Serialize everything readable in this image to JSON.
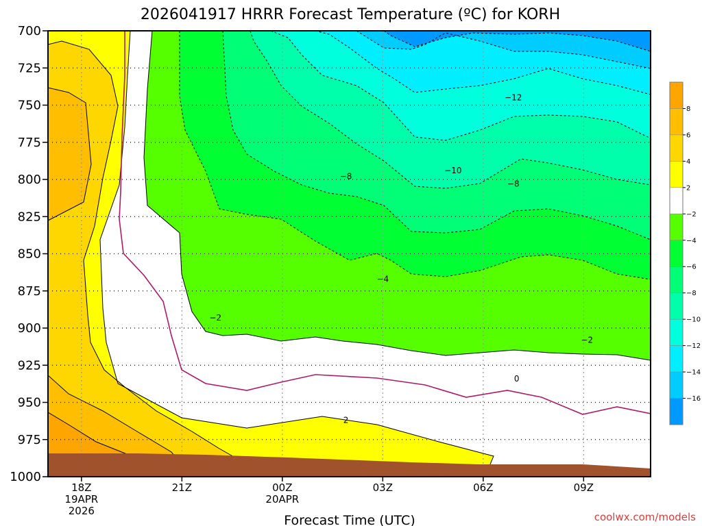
{
  "title": "2026041917 HRRR Forecast Temperature (ºC) for KORH",
  "credit": "coolwx.com/models",
  "chart_data": {
    "type": "heatmap",
    "title": "2026041917 HRRR Forecast Temperature (ºC) for KORH",
    "xlabel": "Forecast Time (UTC)",
    "ylabel": "",
    "y_ticks": [
      "700",
      "725",
      "750",
      "775",
      "800",
      "825",
      "850",
      "875",
      "900",
      "925",
      "950",
      "975",
      "1000"
    ],
    "y_range": [
      700,
      1000
    ],
    "y_reversed": true,
    "x_range_hours_utc": [
      17,
      35
    ],
    "x_ticks": [
      {
        "hour": 18,
        "label": "18Z",
        "line2": "19APR",
        "line3": "2026"
      },
      {
        "hour": 21,
        "label": "21Z",
        "line2": "",
        "line3": ""
      },
      {
        "hour": 24,
        "label": "00Z",
        "line2": "20APR",
        "line3": ""
      },
      {
        "hour": 27,
        "label": "03Z",
        "line2": "",
        "line3": ""
      },
      {
        "hour": 30,
        "label": "06Z",
        "line2": "",
        "line3": ""
      },
      {
        "hour": 33,
        "label": "09Z",
        "line2": "",
        "line3": ""
      }
    ],
    "grid": true,
    "ground_color": "#a0522d",
    "colorbar": {
      "placement": "right",
      "labels": [
        "8",
        "6",
        "4",
        "2",
        "-2",
        "-4",
        "-6",
        "-8",
        "-10",
        "-12",
        "-14",
        "-16"
      ],
      "bands": [
        {
          "from": 8,
          "to": 10,
          "color": "#ffa500"
        },
        {
          "from": 6,
          "to": 8,
          "color": "#ffbf00"
        },
        {
          "from": 4,
          "to": 6,
          "color": "#ffd700"
        },
        {
          "from": 2,
          "to": 4,
          "color": "#ffff00"
        },
        {
          "from": -2,
          "to": 2,
          "color": "#ffffff"
        },
        {
          "from": -4,
          "to": -2,
          "color": "#55ff00"
        },
        {
          "from": -6,
          "to": -4,
          "color": "#00ff33"
        },
        {
          "from": -8,
          "to": -6,
          "color": "#00ff77"
        },
        {
          "from": -10,
          "to": -8,
          "color": "#00ffaa"
        },
        {
          "from": -12,
          "to": -10,
          "color": "#00ffdd"
        },
        {
          "from": -14,
          "to": -12,
          "color": "#00eeff"
        },
        {
          "from": -16,
          "to": -14,
          "color": "#00ccff"
        },
        {
          "from": -18,
          "to": -16,
          "color": "#0099ff"
        }
      ]
    },
    "contour_labels": [
      {
        "text": "-12",
        "hour": 30.9,
        "p": 745
      },
      {
        "text": "-10",
        "hour": 29.1,
        "p": 794
      },
      {
        "text": "-8",
        "hour": 25.9,
        "p": 798
      },
      {
        "text": "-8",
        "hour": 30.9,
        "p": 803
      },
      {
        "text": "-4",
        "hour": 27.0,
        "p": 867
      },
      {
        "text": "-2",
        "hour": 22.0,
        "p": 893
      },
      {
        "text": "-2",
        "hour": 33.1,
        "p": 908
      },
      {
        "text": "0",
        "hour": 31.0,
        "p": 934
      },
      {
        "text": "2",
        "hour": 25.9,
        "p": 962
      }
    ]
  }
}
